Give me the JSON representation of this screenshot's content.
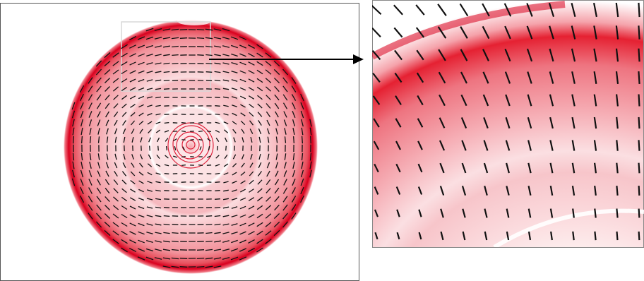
{
  "figure": {
    "description_free": true,
    "colors": {
      "field_strong": "#d9001e",
      "field_mid": "#f07a86",
      "field_light": "#fbe1e3",
      "background": "#ffffff",
      "vector": "#111111",
      "frame": "#555555",
      "arrow": "#000000",
      "inset_box": "#d8d8d8"
    },
    "panels": [
      {
        "name": "full-field-view"
      },
      {
        "name": "zoomed-inset-view"
      }
    ],
    "icons": {
      "pointer": "right-arrow-icon"
    }
  }
}
